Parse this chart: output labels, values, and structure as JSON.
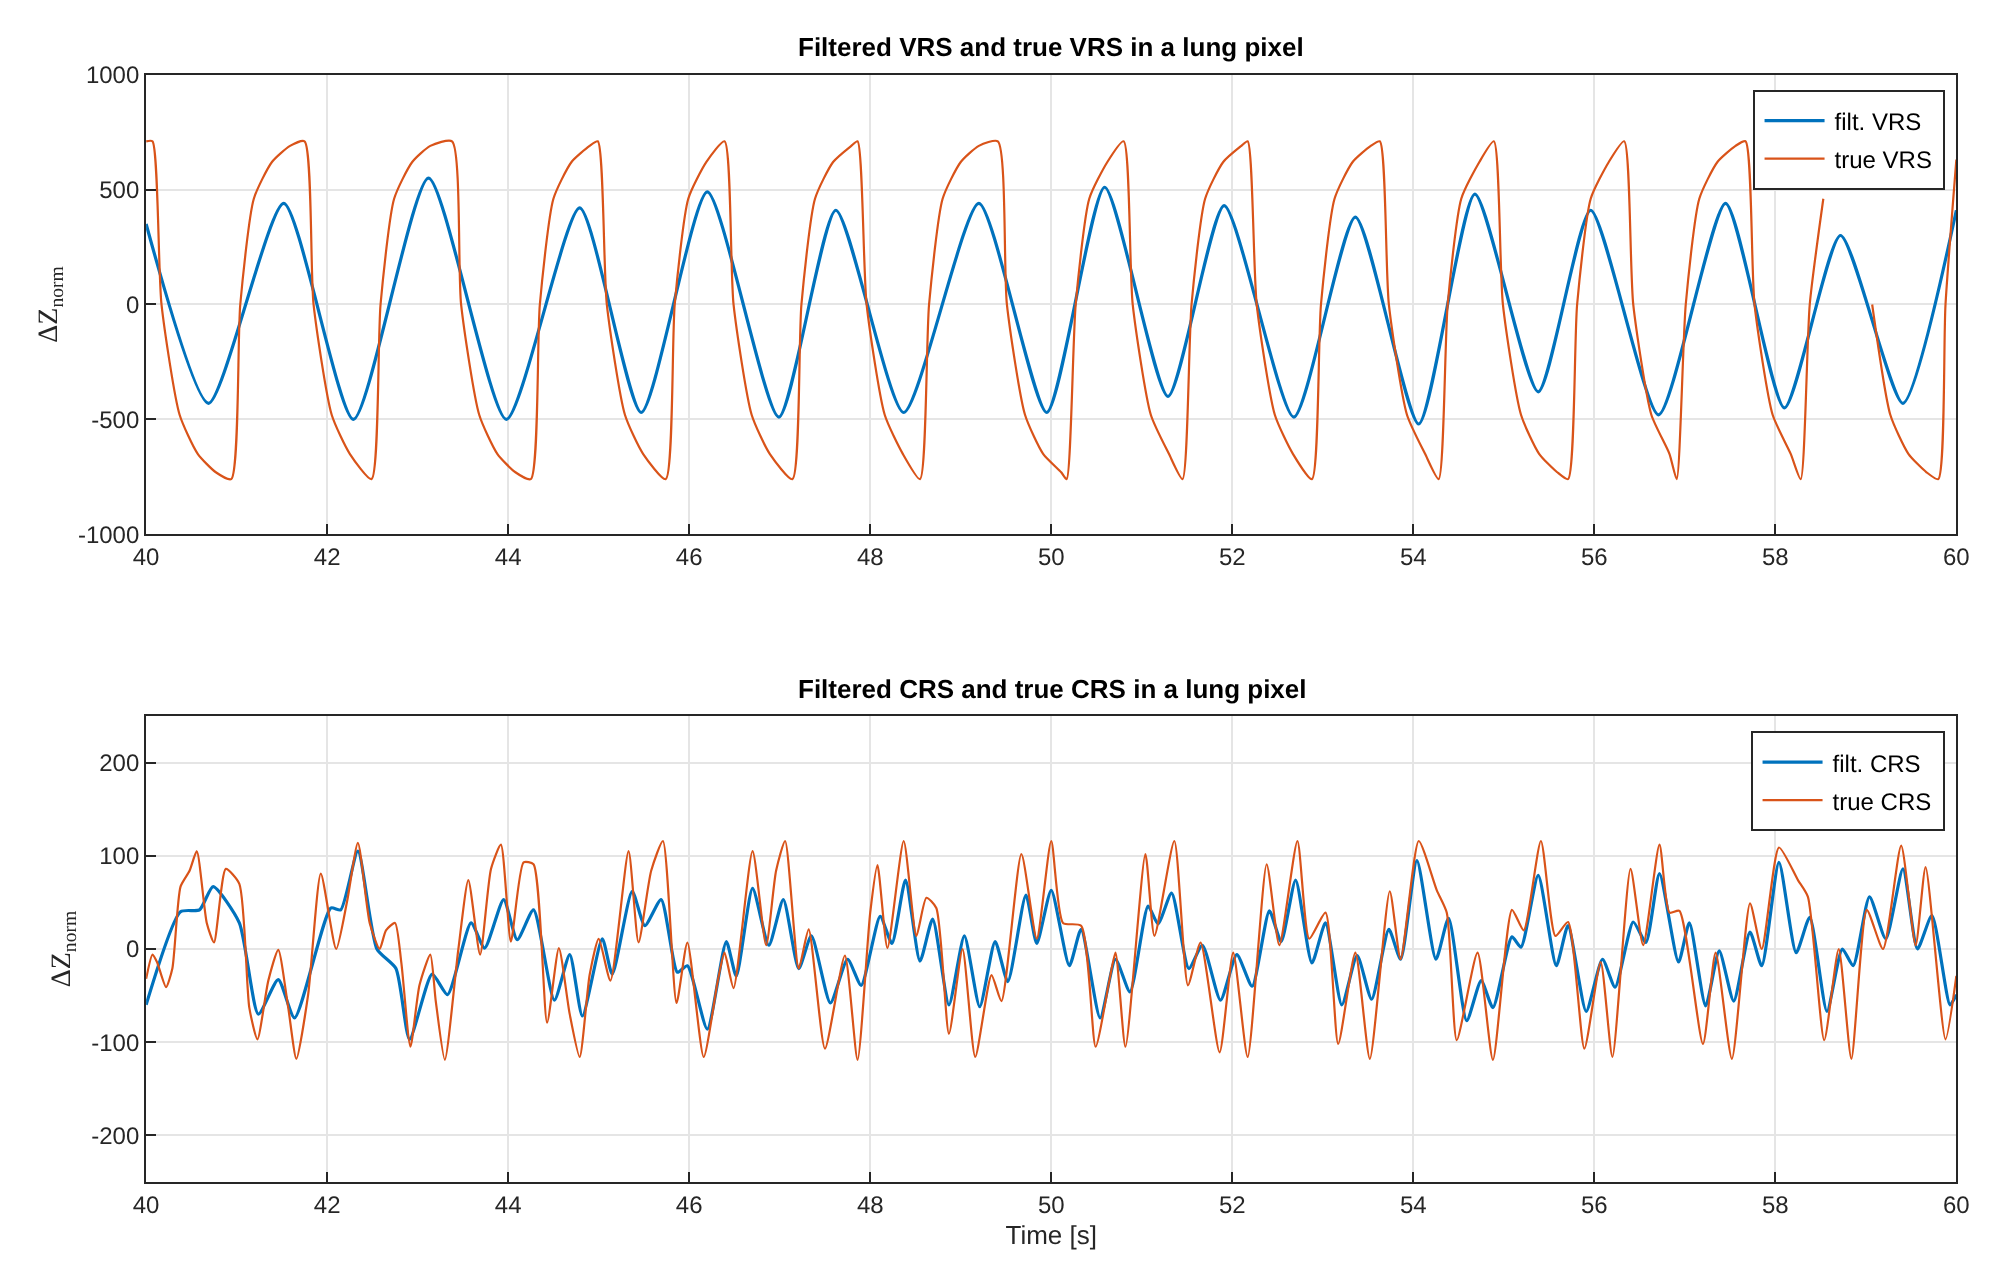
{
  "chart_data": [
    {
      "type": "line",
      "title": "Filtered VRS and true VRS in a lung pixel",
      "ylabel": "ΔZ$_{norm}$",
      "xlim": [
        40,
        60
      ],
      "xticks": [
        40,
        42,
        44,
        46,
        48,
        50,
        52,
        54,
        56,
        58,
        60
      ],
      "ylim": [
        -1000,
        1000
      ],
      "yticks": [
        -1000,
        -500,
        0,
        500,
        1000
      ],
      "grid": true,
      "legend": "top right",
      "series": [
        {
          "name": "filt. VRS",
          "color": "#0072bd",
          "x": [
            40.0,
            40.69,
            41.52,
            42.29,
            43.12,
            43.98,
            44.79,
            45.47,
            46.2,
            46.99,
            47.62,
            48.37,
            49.2,
            49.95,
            50.59,
            51.29,
            51.91,
            52.68,
            53.36,
            54.06,
            54.68,
            55.38,
            55.96,
            56.71,
            57.45,
            58.1,
            58.72,
            59.41,
            60.0
          ],
          "values": [
            350,
            -430,
            440,
            -500,
            550,
            -500,
            420,
            -470,
            490,
            -490,
            410,
            -470,
            440,
            -470,
            510,
            -400,
            430,
            -490,
            380,
            -520,
            480,
            -380,
            410,
            -480,
            440,
            -450,
            300,
            -430,
            410
          ]
        },
        {
          "name": "true VRS",
          "color": "#d95319",
          "x": [
            40.0,
            40.07,
            40.17,
            40.37,
            40.57,
            40.77,
            40.94,
            41.04,
            41.19,
            41.39,
            41.59,
            41.75,
            41.85,
            42.05,
            42.25,
            42.49,
            42.59,
            42.74,
            42.94,
            43.14,
            43.38,
            43.48,
            43.68,
            43.88,
            44.08,
            44.25,
            44.35,
            44.5,
            44.7,
            44.9,
            44.99,
            45.09,
            45.29,
            45.49,
            45.74,
            45.84,
            45.99,
            46.19,
            46.39,
            46.49,
            46.69,
            46.89,
            47.14,
            47.24,
            47.39,
            47.59,
            47.79,
            47.86,
            47.96,
            48.16,
            48.36,
            48.55,
            48.65,
            48.8,
            49.0,
            49.2,
            49.41,
            49.51,
            49.71,
            49.91,
            50.11,
            50.17,
            50.27,
            50.42,
            50.62,
            50.8,
            50.9,
            51.1,
            51.3,
            51.45,
            51.55,
            51.7,
            51.9,
            52.1,
            52.17,
            52.27,
            52.47,
            52.67,
            52.88,
            52.98,
            53.13,
            53.33,
            53.53,
            53.63,
            53.73,
            53.93,
            54.13,
            54.28,
            54.38,
            54.53,
            54.73,
            54.89,
            54.99,
            55.19,
            55.39,
            55.59,
            55.71,
            55.81,
            55.96,
            56.16,
            56.33,
            56.43,
            56.63,
            56.83,
            56.91,
            57.01,
            57.16,
            57.36,
            57.56,
            57.67,
            57.77,
            57.97,
            58.17,
            58.28,
            58.38,
            58.53,
            58.73,
            58.97,
            59.07,
            59.27,
            59.47,
            59.67,
            59.8,
            59.88,
            60.0
          ],
          "values": [
            710,
            710,
            0,
            -480,
            -650,
            -730,
            -760,
            0,
            460,
            620,
            690,
            710,
            0,
            -480,
            -650,
            -760,
            0,
            460,
            620,
            690,
            710,
            0,
            -480,
            -650,
            -730,
            -760,
            0,
            460,
            620,
            690,
            710,
            0,
            -480,
            -650,
            -760,
            0,
            460,
            620,
            710,
            0,
            -480,
            -650,
            -760,
            0,
            460,
            620,
            690,
            710,
            0,
            -480,
            -650,
            -760,
            0,
            460,
            620,
            690,
            710,
            0,
            -480,
            -650,
            -730,
            -760,
            0,
            460,
            620,
            710,
            0,
            -480,
            -650,
            -760,
            0,
            460,
            620,
            690,
            710,
            0,
            -480,
            -650,
            -760,
            0,
            460,
            620,
            690,
            710,
            0,
            -480,
            -650,
            -760,
            0,
            460,
            620,
            710,
            0,
            -480,
            -650,
            -730,
            -760,
            0,
            460,
            620,
            710,
            0,
            -480,
            -650,
            -760,
            0,
            460,
            620,
            690,
            710,
            0,
            -480,
            -650,
            -760,
            0,
            460,
            null,
            null,
            0,
            -480,
            -650,
            -730,
            -760,
            0,
            630
          ]
        }
      ]
    },
    {
      "type": "line",
      "title": "Filtered CRS and true CRS in a lung pixel",
      "xlabel": "Time [s]",
      "ylabel": "ΔZ$_{norm}$",
      "xlim": [
        40,
        60
      ],
      "xticks": [
        40,
        42,
        44,
        46,
        48,
        50,
        52,
        54,
        56,
        58,
        60
      ],
      "ylim": [
        -250,
        250
      ],
      "yticks": [
        -200,
        -100,
        0,
        100,
        200
      ],
      "grid": true,
      "legend": "top right",
      "series": [
        {
          "name": "filt. CRS",
          "color": "#0072bd",
          "x": [
            40.0,
            40.38,
            40.59,
            40.74,
            41.03,
            41.24,
            41.46,
            41.64,
            42.04,
            42.15,
            42.34,
            42.55,
            42.76,
            42.91,
            43.16,
            43.33,
            43.59,
            43.74,
            43.95,
            44.1,
            44.28,
            44.51,
            44.68,
            44.82,
            45.04,
            45.15,
            45.37,
            45.51,
            45.69,
            45.87,
            45.98,
            46.2,
            46.41,
            46.52,
            46.7,
            46.88,
            47.04,
            47.21,
            47.35,
            47.56,
            47.75,
            47.9,
            48.11,
            48.24,
            48.39,
            48.55,
            48.69,
            48.87,
            49.04,
            49.21,
            49.38,
            49.52,
            49.72,
            49.84,
            50.0,
            50.2,
            50.33,
            50.54,
            50.71,
            50.87,
            51.07,
            51.18,
            51.33,
            51.52,
            51.67,
            51.87,
            52.05,
            52.22,
            52.41,
            52.54,
            52.7,
            52.88,
            53.03,
            53.21,
            53.38,
            53.54,
            53.73,
            53.86,
            54.04,
            54.25,
            54.39,
            54.59,
            54.75,
            54.88,
            55.09,
            55.19,
            55.38,
            55.58,
            55.71,
            55.91,
            56.09,
            56.23,
            56.43,
            56.57,
            56.72,
            56.93,
            57.05,
            57.23,
            57.38,
            57.54,
            57.72,
            57.85,
            58.04,
            58.23,
            58.38,
            58.57,
            58.74,
            58.86,
            59.04,
            59.22,
            59.41,
            59.57,
            59.73,
            59.93,
            60.0
          ],
          "values": [
            -60,
            40,
            42,
            67,
            28,
            -70,
            -33,
            -74,
            44,
            42,
            105,
            0,
            -21,
            -97,
            -27,
            -49,
            28,
            1,
            53,
            10,
            42,
            -55,
            -6,
            -72,
            11,
            -27,
            62,
            25,
            53,
            -25,
            -18,
            -86,
            8,
            -29,
            65,
            4,
            53,
            -21,
            14,
            -58,
            -11,
            -39,
            35,
            6,
            74,
            -13,
            32,
            -60,
            14,
            -62,
            8,
            -35,
            58,
            6,
            63,
            -18,
            21,
            -74,
            -11,
            -46,
            46,
            27,
            60,
            -21,
            4,
            -55,
            -6,
            -40,
            41,
            8,
            74,
            -15,
            28,
            -60,
            -7,
            -54,
            21,
            -11,
            95,
            -11,
            33,
            -77,
            -34,
            -63,
            13,
            2,
            79,
            -18,
            25,
            -67,
            -11,
            -41,
            29,
            7,
            81,
            -14,
            28,
            -61,
            -2,
            -56,
            18,
            -18,
            93,
            -4,
            34,
            -67,
            0,
            -18,
            56,
            11,
            86,
            0,
            36,
            -60,
            -49
          ]
        },
        {
          "name": "true CRS",
          "color": "#d95319",
          "x": [
            40.0,
            40.07,
            40.12,
            40.22,
            40.29,
            40.38,
            40.48,
            40.56,
            40.67,
            40.75,
            40.88,
            41.03,
            41.14,
            41.23,
            41.35,
            41.46,
            41.57,
            41.66,
            41.79,
            41.93,
            42.1,
            42.22,
            42.34,
            42.47,
            42.58,
            42.65,
            42.75,
            42.82,
            42.92,
            43.02,
            43.14,
            43.2,
            43.3,
            43.45,
            43.56,
            43.69,
            43.81,
            43.92,
            44.03,
            44.17,
            44.28,
            44.43,
            44.56,
            44.68,
            44.79,
            44.9,
            45.0,
            45.13,
            45.33,
            45.44,
            45.58,
            45.71,
            45.86,
            45.98,
            46.16,
            46.32,
            46.39,
            46.49,
            46.7,
            46.85,
            46.96,
            47.06,
            47.21,
            47.32,
            47.5,
            47.72,
            47.86,
            48.0,
            48.08,
            48.19,
            48.37,
            48.51,
            48.62,
            48.73,
            48.87,
            49.02,
            49.16,
            49.34,
            49.45,
            49.67,
            49.84,
            50.0,
            50.13,
            50.33,
            50.49,
            50.64,
            50.71,
            50.82,
            51.04,
            51.14,
            51.36,
            51.51,
            51.65,
            51.86,
            52.01,
            52.17,
            52.38,
            52.52,
            52.72,
            52.85,
            53.03,
            53.17,
            53.36,
            53.52,
            53.74,
            53.86,
            54.06,
            54.26,
            54.37,
            54.48,
            54.71,
            54.88,
            55.09,
            55.22,
            55.41,
            55.57,
            55.71,
            55.89,
            56.07,
            56.2,
            56.4,
            56.54,
            56.72,
            56.83,
            56.94,
            57.2,
            57.34,
            57.52,
            57.72,
            57.85,
            58.04,
            58.25,
            58.36,
            58.54,
            58.7,
            58.84,
            59.01,
            59.19,
            59.39,
            59.55,
            59.66,
            59.88,
            60.0
          ],
          "values": [
            -32,
            -6,
            -14,
            -41,
            -21,
            67,
            84,
            105,
            28,
            7,
            86,
            70,
            -63,
            -97,
            -34,
            -1,
            -63,
            -118,
            -49,
            81,
            0,
            51,
            114,
            28,
            0,
            20,
            28,
            -15,
            -105,
            -39,
            -6,
            -56,
            -119,
            0,
            74,
            -6,
            86,
            112,
            8,
            93,
            91,
            -79,
            1,
            -70,
            -116,
            -28,
            11,
            -34,
            105,
            7,
            84,
            116,
            -58,
            7,
            -116,
            -32,
            -4,
            -42,
            105,
            4,
            84,
            116,
            -21,
            21,
            -107,
            -7,
            -119,
            39,
            90,
            1,
            116,
            14,
            55,
            44,
            -91,
            0,
            -116,
            -28,
            -56,
            102,
            11,
            116,
            28,
            25,
            -105,
            -35,
            -4,
            -105,
            102,
            14,
            116,
            -39,
            7,
            -111,
            -4,
            -116,
            91,
            4,
            116,
            11,
            39,
            -102,
            -4,
            -118,
            62,
            -11,
            116,
            63,
            39,
            -98,
            -4,
            -119,
            42,
            20,
            116,
            14,
            29,
            -107,
            -14,
            -116,
            86,
            4,
            112,
            39,
            41,
            -102,
            -4,
            -118,
            49,
            0,
            109,
            74,
            56,
            -98,
            0,
            -118,
            42,
            0,
            111,
            4,
            88,
            -97,
            -29
          ]
        }
      ]
    }
  ]
}
